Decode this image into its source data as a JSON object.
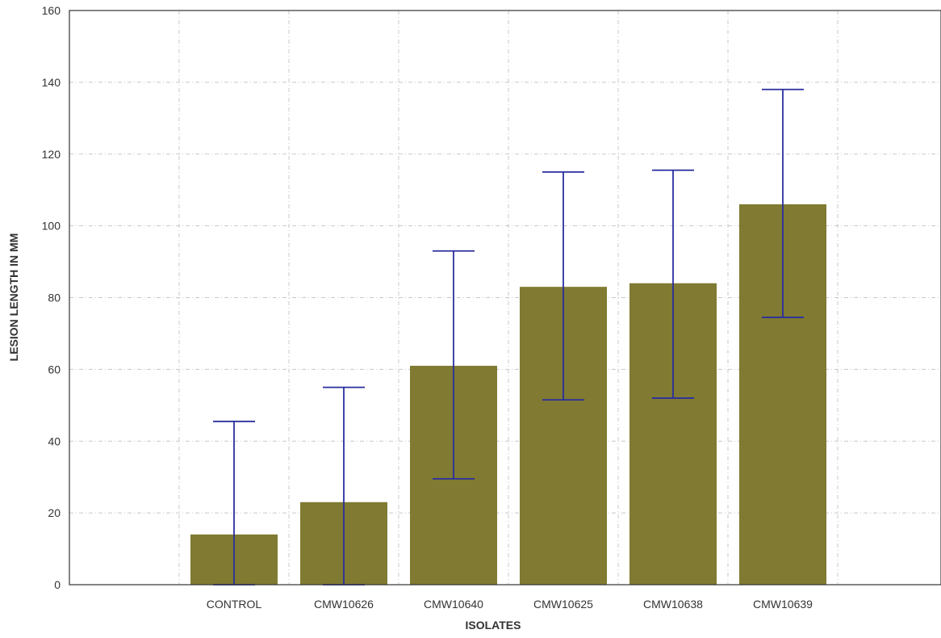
{
  "chart_data": {
    "type": "bar",
    "title": "",
    "xlabel": "ISOLATES",
    "ylabel": "LESION LENGTH IN MM",
    "categories": [
      "CONTROL",
      "CMW10626",
      "CMW10640",
      "CMW10625",
      "CMW10638",
      "CMW10639"
    ],
    "values": [
      14,
      23,
      61,
      83,
      84,
      106
    ],
    "error_bars": [
      {
        "low": -18,
        "high": 45.5
      },
      {
        "low": -9,
        "high": 55
      },
      {
        "low": 29.5,
        "high": 93
      },
      {
        "low": 51.5,
        "high": 115
      },
      {
        "low": 52,
        "high": 115.5
      },
      {
        "low": 74.5,
        "high": 138
      }
    ],
    "ylim": [
      0,
      160
    ],
    "yticks": [
      0,
      20,
      40,
      60,
      80,
      100,
      120,
      140,
      160
    ],
    "grid": true,
    "legend": "none",
    "colors": {
      "bar": "#807a32",
      "error_bar": "#2a2f9e",
      "frame": "#333333",
      "grid": "#c8c8c8"
    }
  }
}
